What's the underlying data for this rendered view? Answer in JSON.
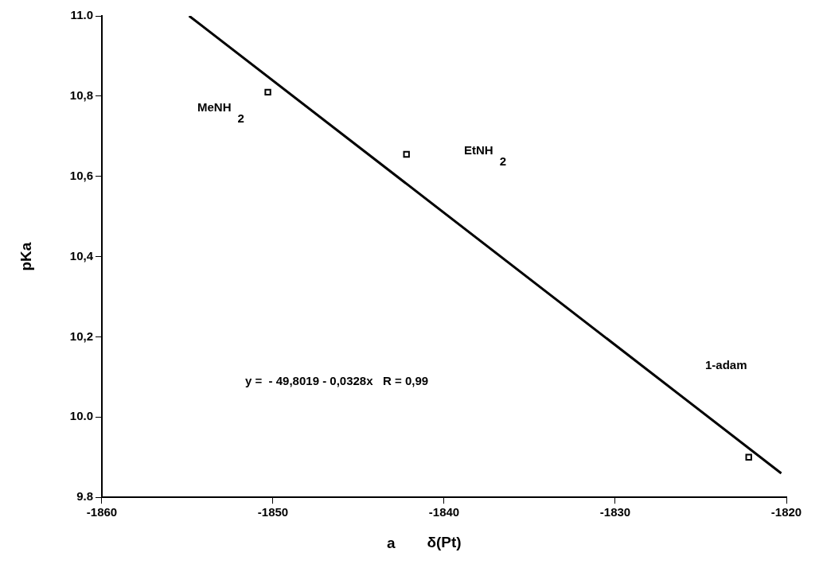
{
  "chart_data": {
    "type": "scatter",
    "xlabel": "δ(Pt)",
    "ylabel": "pKa",
    "xlim": [
      -1860,
      -1820
    ],
    "xticks": [
      -1860,
      -1850,
      -1840,
      -1830,
      -1820
    ],
    "ylim": [
      9.8,
      11.0
    ],
    "yticks": [
      {
        "value": 9.8,
        "label": "9.8"
      },
      {
        "value": 10.0,
        "label": "10.0"
      },
      {
        "value": 10.2,
        "label": "10,2"
      },
      {
        "value": 10.4,
        "label": "10,4"
      },
      {
        "value": 10.6,
        "label": "10,6"
      },
      {
        "value": 10.8,
        "label": "10,8"
      },
      {
        "value": 11.0,
        "label": "11.0"
      }
    ],
    "grid": false,
    "legend": false,
    "marker": "square",
    "series": [
      {
        "color": "#000000",
        "x": [
          -1850.3,
          -1842.2,
          -1822.2
        ],
        "values": [
          10.81,
          10.655,
          9.9
        ]
      },
      {
        "type": "line",
        "color": "#000000",
        "marker": "none",
        "line_style": "solid",
        "x": [
          -1854.9,
          -1820.3
        ],
        "values": [
          11.0,
          9.86
        ]
      }
    ],
    "annotations": [
      "MeNH$_{2}$",
      "EtNH$_{2}$",
      "1-adam",
      "y =  - 49,8019 - 0,0328x   R = 0,99",
      "a"
    ]
  }
}
